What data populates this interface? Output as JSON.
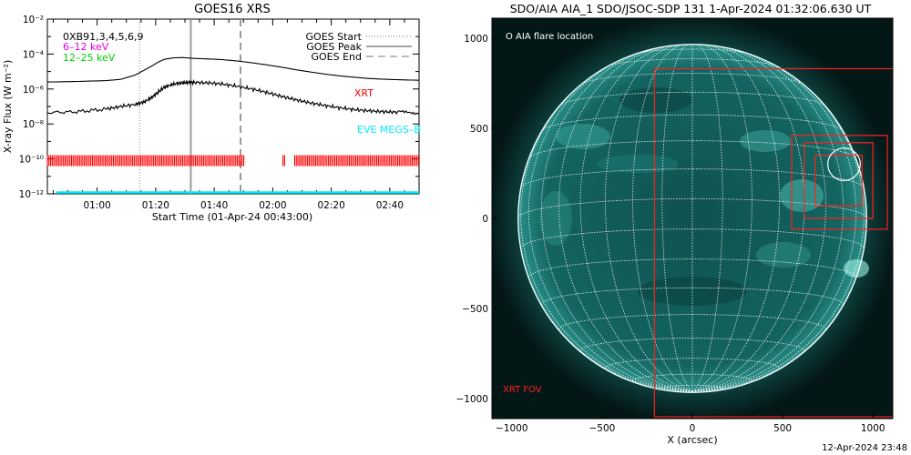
{
  "left_panel": {
    "title": "GOES16 XRS",
    "ylabel": "X-ray Flux (W m⁻²)",
    "xlabel": "Start Time (01-Apr-24 00:43:00)",
    "overlay_text": "0XB91,3,4,5,6,9",
    "energy_labels": [
      {
        "text": "6–12 keV",
        "color": "#e000e0"
      },
      {
        "text": "12–25 keV",
        "color": "#00d000"
      }
    ],
    "legend": [
      {
        "label": "GOES Start",
        "style": "dotted"
      },
      {
        "label": "GOES Peak",
        "style": "solid"
      },
      {
        "label": "GOES End",
        "style": "dashed"
      }
    ],
    "xrt_label": "XRT",
    "xrt_color": "#ff0000",
    "eve_label": "EVE MEGS–B",
    "eve_color": "#00e8ff",
    "ytick_labels": [
      "10⁻²",
      "10⁻⁴",
      "10⁻⁶",
      "10⁻⁸",
      "10⁻¹⁰",
      "10⁻¹²"
    ],
    "xtick_labels": [
      "01:00",
      "01:20",
      "01:40",
      "02:00",
      "02:20",
      "02:40"
    ]
  },
  "right_panel": {
    "title": "SDO/AIA AIA_1 SDO/JSOC-SDP 131  1-Apr-2024 01:32:06.630 UT",
    "legend_text": "O AIA flare location",
    "fov_label": "XRT FOV",
    "xlabel": "X (arcsec)",
    "xtick_labels": [
      "−1000",
      "−500",
      "0",
      "500",
      "1000"
    ],
    "ytick_labels": [
      "1000",
      "500",
      "0",
      "−500",
      "−1000"
    ],
    "disk_color": "#0c5a58",
    "grid_color": "#ffffff",
    "fov_color": "#ff2020"
  },
  "footer": {
    "timestamp": "12-Apr-2024 23:48"
  },
  "chart_data": [
    {
      "type": "line",
      "title": "GOES16 XRS",
      "xlabel": "Start Time (01-Apr-24 00:43:00)",
      "ylabel": "X-ray Flux (W m⁻²)",
      "x_unit": "minutes after 00:43",
      "xlim": [
        0,
        127
      ],
      "ylim_log10": [
        -12,
        -2
      ],
      "yscale": "log",
      "series": [
        {
          "name": "upper",
          "x": [
            0,
            10,
            20,
            25,
            30,
            35,
            38,
            40,
            43,
            46,
            48,
            50,
            55,
            60,
            65,
            70,
            75,
            80,
            85,
            90,
            95,
            100,
            105,
            110,
            115,
            120,
            127
          ],
          "log10_flux": [
            -5.6,
            -5.57,
            -5.52,
            -5.45,
            -5.2,
            -4.75,
            -4.45,
            -4.3,
            -4.22,
            -4.2,
            -4.22,
            -4.25,
            -4.28,
            -4.32,
            -4.4,
            -4.5,
            -4.62,
            -4.75,
            -4.9,
            -5.03,
            -5.15,
            -5.25,
            -5.33,
            -5.4,
            -5.44,
            -5.47,
            -5.5
          ]
        },
        {
          "name": "lower",
          "x": [
            0,
            10,
            20,
            25,
            30,
            33,
            36,
            38,
            40,
            43,
            46,
            48,
            50,
            55,
            60,
            65,
            70,
            75,
            80,
            85,
            90,
            95,
            100,
            105,
            110,
            115,
            120,
            127
          ],
          "log10_flux": [
            -7.35,
            -7.3,
            -7.15,
            -7.0,
            -6.88,
            -6.75,
            -6.45,
            -6.15,
            -5.9,
            -5.72,
            -5.65,
            -5.62,
            -5.62,
            -5.65,
            -5.72,
            -5.85,
            -6.0,
            -6.2,
            -6.42,
            -6.62,
            -6.8,
            -6.95,
            -7.08,
            -7.18,
            -7.25,
            -7.3,
            -7.33,
            -7.36
          ]
        }
      ],
      "vertical_lines": [
        {
          "label": "GOES Start",
          "x": 31.5,
          "style": "dotted"
        },
        {
          "label": "GOES Peak",
          "x": 49,
          "style": "solid"
        },
        {
          "label": "GOES End",
          "x": 66,
          "style": "dashed"
        }
      ],
      "xrt_coverage": {
        "log10_flux": -10.1,
        "intervals": [
          [
            0,
            67.5
          ],
          [
            80.5,
            81.5
          ],
          [
            84.5,
            127
          ]
        ]
      },
      "eve_level_log10": -12
    },
    {
      "type": "scatter",
      "title": "SDO/AIA AIA_1 SDO/JSOC-SDP 131  1-Apr-2024 01:32:06.630 UT",
      "xlabel": "X (arcsec)",
      "xlim": [
        -1110,
        1110
      ],
      "ylim": [
        -1110,
        1110
      ],
      "solar_radius_arcsec": 965,
      "flare_location": {
        "x": 840,
        "y": 300,
        "r": 90
      },
      "xrt_fov_boxes": [
        {
          "x0": -210,
          "x1": 1110,
          "y0": -1100,
          "y1": 830
        },
        {
          "x0": 550,
          "x1": 1080,
          "y0": -60,
          "y1": 460
        },
        {
          "x0": 620,
          "x1": 1000,
          "y0": 0,
          "y1": 420
        },
        {
          "x0": 680,
          "x1": 940,
          "y0": 70,
          "y1": 350
        }
      ]
    }
  ]
}
